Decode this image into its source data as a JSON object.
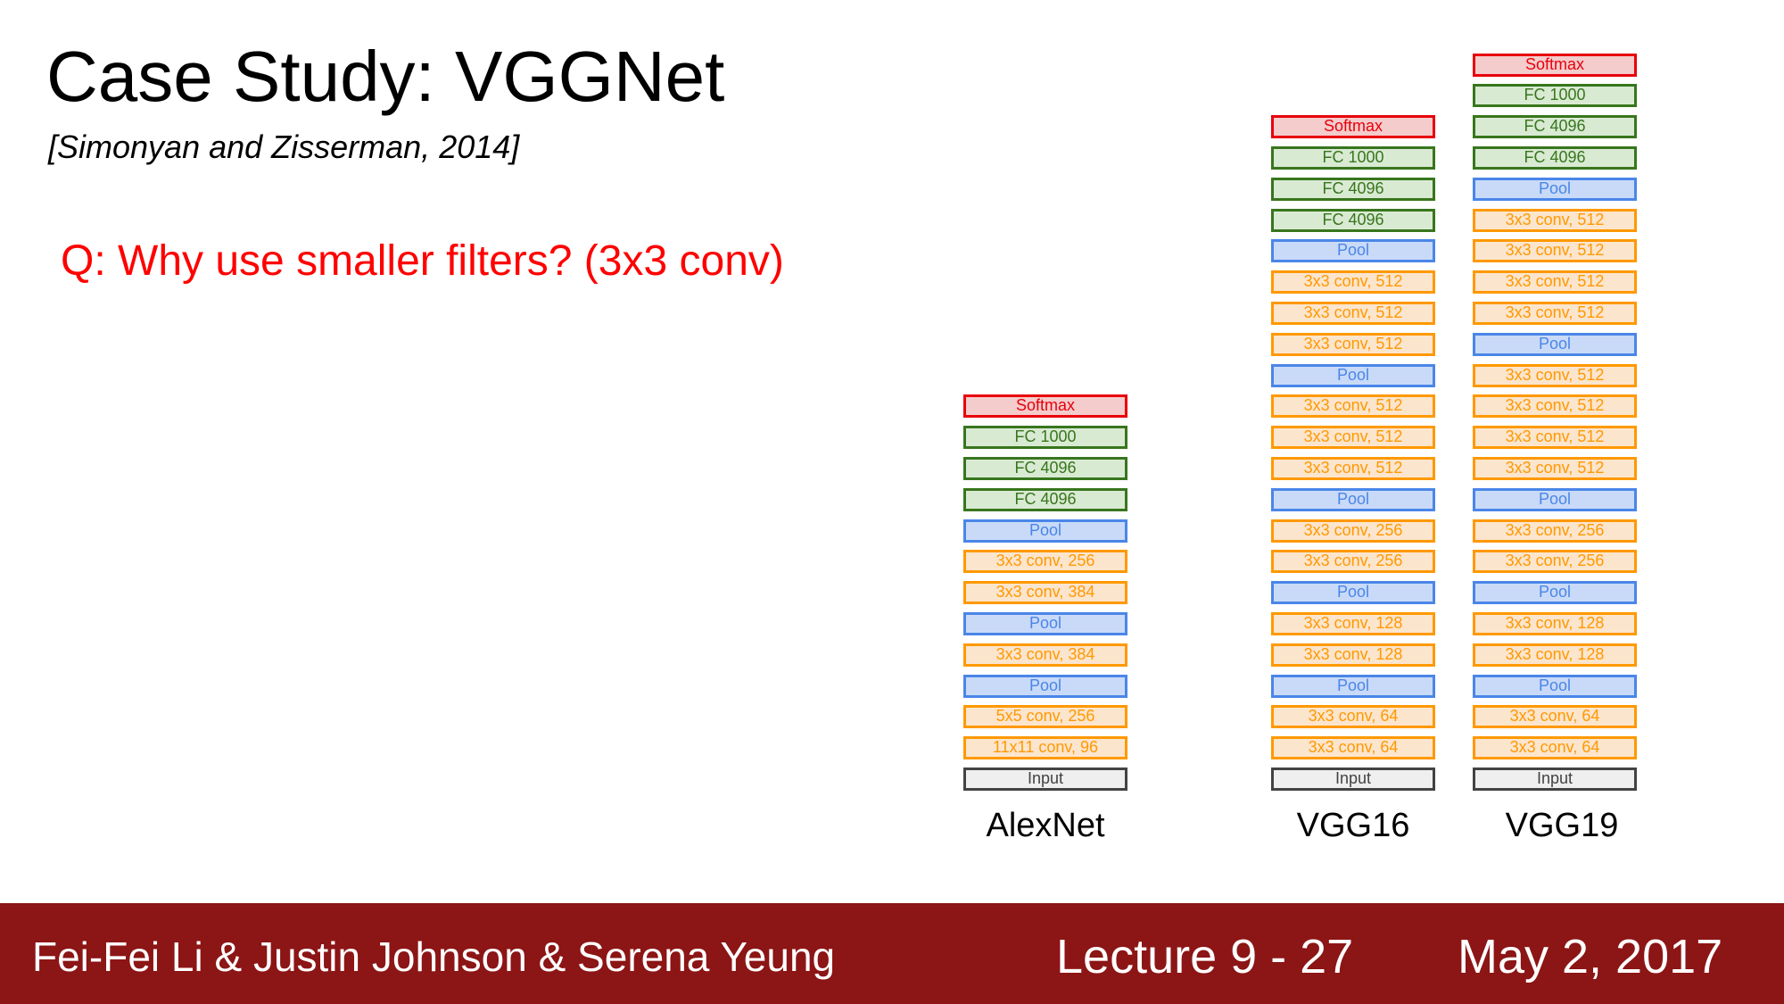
{
  "slide": {
    "title": "Case Study: VGGNet",
    "citation": "[Simonyan and Zisserman, 2014]",
    "question": "Q: Why use smaller filters? (3x3 conv)"
  },
  "colors": {
    "question_text": "#ff0000",
    "footer_background": "#8c1515",
    "softmax": "#e8000b",
    "fc": "#38761d",
    "pool": "#4a86e8",
    "conv": "#ff9900",
    "input": "#434343"
  },
  "networks": [
    {
      "name": "AlexNet",
      "layers": [
        {
          "type": "softmax",
          "label": "Softmax"
        },
        {
          "type": "fc",
          "label": "FC 1000"
        },
        {
          "type": "fc",
          "label": "FC 4096"
        },
        {
          "type": "fc",
          "label": "FC 4096"
        },
        {
          "type": "pool",
          "label": "Pool"
        },
        {
          "type": "conv",
          "label": "3x3 conv, 256"
        },
        {
          "type": "conv",
          "label": "3x3 conv, 384"
        },
        {
          "type": "pool",
          "label": "Pool"
        },
        {
          "type": "conv",
          "label": "3x3 conv, 384"
        },
        {
          "type": "pool",
          "label": "Pool"
        },
        {
          "type": "conv",
          "label": "5x5 conv, 256"
        },
        {
          "type": "conv",
          "label": "11x11 conv, 96"
        },
        {
          "type": "input",
          "label": "Input"
        }
      ]
    },
    {
      "name": "VGG16",
      "layers": [
        {
          "type": "softmax",
          "label": "Softmax"
        },
        {
          "type": "fc",
          "label": "FC 1000"
        },
        {
          "type": "fc",
          "label": "FC 4096"
        },
        {
          "type": "fc",
          "label": "FC 4096"
        },
        {
          "type": "pool",
          "label": "Pool"
        },
        {
          "type": "conv",
          "label": "3x3 conv, 512"
        },
        {
          "type": "conv",
          "label": "3x3 conv, 512"
        },
        {
          "type": "conv",
          "label": "3x3 conv, 512"
        },
        {
          "type": "pool",
          "label": "Pool"
        },
        {
          "type": "conv",
          "label": "3x3 conv, 512"
        },
        {
          "type": "conv",
          "label": "3x3 conv, 512"
        },
        {
          "type": "conv",
          "label": "3x3 conv, 512"
        },
        {
          "type": "pool",
          "label": "Pool"
        },
        {
          "type": "conv",
          "label": "3x3 conv, 256"
        },
        {
          "type": "conv",
          "label": "3x3 conv, 256"
        },
        {
          "type": "pool",
          "label": "Pool"
        },
        {
          "type": "conv",
          "label": "3x3 conv, 128"
        },
        {
          "type": "conv",
          "label": "3x3 conv, 128"
        },
        {
          "type": "pool",
          "label": "Pool"
        },
        {
          "type": "conv",
          "label": "3x3 conv, 64"
        },
        {
          "type": "conv",
          "label": "3x3 conv, 64"
        },
        {
          "type": "input",
          "label": "Input"
        }
      ]
    },
    {
      "name": "VGG19",
      "layers": [
        {
          "type": "softmax",
          "label": "Softmax"
        },
        {
          "type": "fc",
          "label": "FC 1000"
        },
        {
          "type": "fc",
          "label": "FC 4096"
        },
        {
          "type": "fc",
          "label": "FC 4096"
        },
        {
          "type": "pool",
          "label": "Pool"
        },
        {
          "type": "conv",
          "label": "3x3 conv, 512"
        },
        {
          "type": "conv",
          "label": "3x3 conv, 512"
        },
        {
          "type": "conv",
          "label": "3x3 conv, 512"
        },
        {
          "type": "conv",
          "label": "3x3 conv, 512"
        },
        {
          "type": "pool",
          "label": "Pool"
        },
        {
          "type": "conv",
          "label": "3x3 conv, 512"
        },
        {
          "type": "conv",
          "label": "3x3 conv, 512"
        },
        {
          "type": "conv",
          "label": "3x3 conv, 512"
        },
        {
          "type": "conv",
          "label": "3x3 conv, 512"
        },
        {
          "type": "pool",
          "label": "Pool"
        },
        {
          "type": "conv",
          "label": "3x3 conv, 256"
        },
        {
          "type": "conv",
          "label": "3x3 conv, 256"
        },
        {
          "type": "pool",
          "label": "Pool"
        },
        {
          "type": "conv",
          "label": "3x3 conv, 128"
        },
        {
          "type": "conv",
          "label": "3x3 conv, 128"
        },
        {
          "type": "pool",
          "label": "Pool"
        },
        {
          "type": "conv",
          "label": "3x3 conv, 64"
        },
        {
          "type": "conv",
          "label": "3x3 conv, 64"
        },
        {
          "type": "input",
          "label": "Input"
        }
      ]
    }
  ],
  "footer": {
    "authors": "Fei-Fei Li & Justin Johnson & Serena Yeung",
    "lecture": "Lecture 9 - 27",
    "date": "May 2, 2017"
  }
}
